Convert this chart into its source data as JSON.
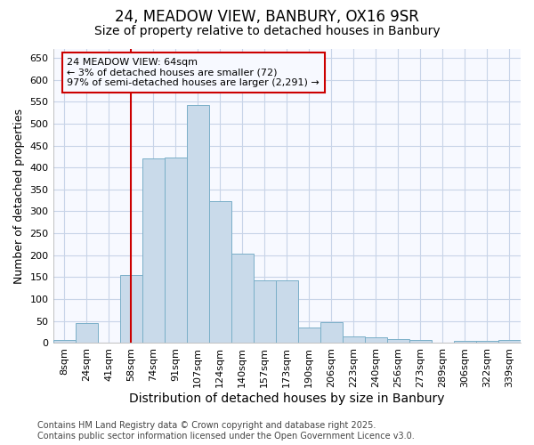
{
  "title": "24, MEADOW VIEW, BANBURY, OX16 9SR",
  "subtitle": "Size of property relative to detached houses in Banbury",
  "xlabel": "Distribution of detached houses by size in Banbury",
  "ylabel": "Number of detached properties",
  "categories": [
    "8sqm",
    "24sqm",
    "41sqm",
    "58sqm",
    "74sqm",
    "91sqm",
    "107sqm",
    "124sqm",
    "140sqm",
    "157sqm",
    "173sqm",
    "190sqm",
    "206sqm",
    "223sqm",
    "240sqm",
    "256sqm",
    "273sqm",
    "289sqm",
    "306sqm",
    "322sqm",
    "339sqm"
  ],
  "values": [
    8,
    45,
    0,
    155,
    420,
    422,
    543,
    323,
    204,
    143,
    143,
    35,
    48,
    15,
    13,
    10,
    8,
    0,
    5,
    5,
    8
  ],
  "bar_color": "#c9daea",
  "bar_edge_color": "#7aafc8",
  "bar_width": 1.0,
  "vline_x": 3.0,
  "vline_color": "#cc0000",
  "annotation_text": "24 MEADOW VIEW: 64sqm\n← 3% of detached houses are smaller (72)\n97% of semi-detached houses are larger (2,291) →",
  "annotation_box_color": "#cc0000",
  "ylim": [
    0,
    670
  ],
  "yticks": [
    0,
    50,
    100,
    150,
    200,
    250,
    300,
    350,
    400,
    450,
    500,
    550,
    600,
    650
  ],
  "footer1": "Contains HM Land Registry data © Crown copyright and database right 2025.",
  "footer2": "Contains public sector information licensed under the Open Government Licence v3.0.",
  "bg_color": "#ffffff",
  "plot_bg_color": "#f7f9ff",
  "grid_color": "#c8d4e8",
  "title_fontsize": 12,
  "subtitle_fontsize": 10,
  "axis_label_fontsize": 9,
  "tick_fontsize": 8,
  "annotation_fontsize": 8,
  "footer_fontsize": 7
}
